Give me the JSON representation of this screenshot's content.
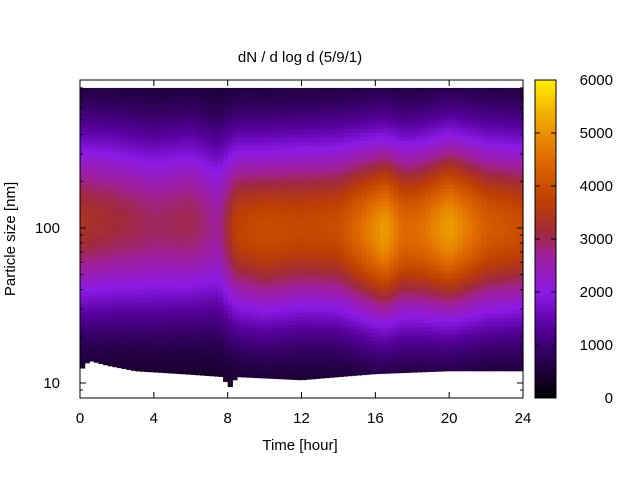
{
  "chart_data": {
    "type": "heatmap",
    "title": "dN / d log d (5/9/1)",
    "xlabel": "Time [hour]",
    "ylabel": "Particle size [nm]",
    "x_range": [
      0,
      24
    ],
    "x_ticks": [
      0,
      4,
      8,
      12,
      16,
      20,
      24
    ],
    "y_scale": "log",
    "y_range": [
      8,
      900
    ],
    "y_ticks": [
      10,
      100
    ],
    "colorbar": {
      "range": [
        0,
        6000
      ],
      "ticks": [
        0,
        1000,
        2000,
        3000,
        4000,
        5000,
        6000
      ],
      "colormap": "black-purple-violet-orange-yellow"
    },
    "grid": false,
    "data_top_nm": 800,
    "mode_diameter_nm": [
      {
        "hour": 0,
        "d": 110
      },
      {
        "hour": 2,
        "d": 110
      },
      {
        "hour": 4,
        "d": 105
      },
      {
        "hour": 6,
        "d": 110
      },
      {
        "hour": 8,
        "d": 100
      },
      {
        "hour": 10,
        "d": 95
      },
      {
        "hour": 12,
        "d": 100
      },
      {
        "hour": 14,
        "d": 100
      },
      {
        "hour": 16,
        "d": 95
      },
      {
        "hour": 18,
        "d": 95
      },
      {
        "hour": 20,
        "d": 100
      },
      {
        "hour": 22,
        "d": 100
      },
      {
        "hour": 24,
        "d": 100
      }
    ],
    "peak_concentration": [
      {
        "hour": 0,
        "v": 3100
      },
      {
        "hour": 2,
        "v": 2900
      },
      {
        "hour": 4,
        "v": 2700
      },
      {
        "hour": 6,
        "v": 2800
      },
      {
        "hour": 7.5,
        "v": 2400
      },
      {
        "hour": 8.5,
        "v": 3500
      },
      {
        "hour": 10,
        "v": 3700
      },
      {
        "hour": 12,
        "v": 3600
      },
      {
        "hour": 14,
        "v": 3700
      },
      {
        "hour": 16.5,
        "v": 4900
      },
      {
        "hour": 17.5,
        "v": 4200
      },
      {
        "hour": 18.5,
        "v": 4300
      },
      {
        "hour": 20,
        "v": 4900
      },
      {
        "hour": 22,
        "v": 4000
      },
      {
        "hour": 24,
        "v": 3700
      }
    ],
    "lower_cutoff_nm": [
      {
        "hour": 0,
        "d": 12
      },
      {
        "hour": 0.5,
        "d": 14
      },
      {
        "hour": 1.5,
        "d": 13
      },
      {
        "hour": 3,
        "d": 12
      },
      {
        "hour": 5.5,
        "d": 11.5
      },
      {
        "hour": 7.8,
        "d": 11
      },
      {
        "hour": 8,
        "d": 9
      },
      {
        "hour": 8.5,
        "d": 11
      },
      {
        "hour": 12,
        "d": 10.5
      },
      {
        "hour": 16,
        "d": 11.5
      },
      {
        "hour": 20,
        "d": 12
      },
      {
        "hour": 24,
        "d": 12
      }
    ]
  }
}
